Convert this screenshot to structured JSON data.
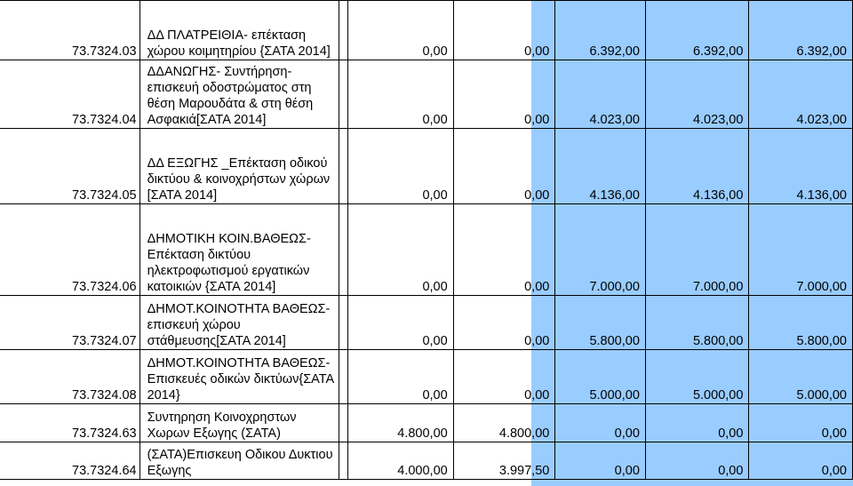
{
  "rows": [
    {
      "code": "73.7324.03",
      "desc": "ΔΔ ΠΛΑΤΡΕΙΘΙΑ- επέκταση χώρου κοιμητηρίου {ΣΑΤΑ 2014]",
      "v1": "0,00",
      "v2": "0,00",
      "v3": "6.392,00",
      "v4": "6.392,00",
      "v5": "6.392,00"
    },
    {
      "code": "73.7324.04",
      "desc": "ΔΔΑΝΩΓΗΣ- Συντήρηση-επισκευή οδοστρώματος στη θέση Μαρουδάτα & στη θέση Ασφακιά[ΣΑΤΑ 2014]",
      "v1": "0,00",
      "v2": "0,00",
      "v3": "4.023,00",
      "v4": "4.023,00",
      "v5": "4.023,00"
    },
    {
      "code": "73.7324.05",
      "desc": "ΔΔ ΕΞΩΓΗΣ _Επέκταση οδικού δικτύου & κοινοχρήστων χώρων [ΣΑΤΑ 2014]",
      "v1": "0,00",
      "v2": "0,00",
      "v3": "4.136,00",
      "v4": "4.136,00",
      "v5": "4.136,00"
    },
    {
      "code": "73.7324.06",
      "desc": "ΔΗΜΟΤΙΚΗ ΚΟΙΝ.ΒΑΘΕΩΣ-Επέκταση δικτύου ηλεκτροφωτισμού εργατικών κατοικιών {ΣΑΤΑ 2014]",
      "v1": "0,00",
      "v2": "0,00",
      "v3": "7.000,00",
      "v4": "7.000,00",
      "v5": "7.000,00"
    },
    {
      "code": "73.7324.07",
      "desc": "ΔΗΜΟΤ.ΚΟΙΝΟΤΗΤΑ ΒΑΘΕΩΣ- επισκευή χώρου στάθμευσης[ΣΑΤΑ 2014]",
      "v1": "0,00",
      "v2": "0,00",
      "v3": "5.800,00",
      "v4": "5.800,00",
      "v5": "5.800,00"
    },
    {
      "code": "73.7324.08",
      "desc": "ΔΗΜΟΤ.ΚΟΙΝΟΤΗΤΑ ΒΑΘΕΩΣ- Επισκευές οδικών δικτύων{ΣΑΤΑ 2014}",
      "v1": "0,00",
      "v2": "0,00",
      "v3": "5.000,00",
      "v4": "5.000,00",
      "v5": "5.000,00"
    },
    {
      "code": "73.7324.63",
      "desc": "Συντηρηση Κοινοχρηστων Χωρων Εξωγης (ΣΑΤΑ)",
      "v1": "4.800,00",
      "v2": "4.800,00",
      "v3": "0,00",
      "v4": "0,00",
      "v5": "0,00"
    },
    {
      "code": "73.7324.64",
      "desc": "(ΣΑΤΑ)Επισκευη Οδικου Δυκτιου Εξωγης",
      "v1": "4.000,00",
      "v2": "3.997,50",
      "v3": "0,00",
      "v4": "0,00",
      "v5": "0,00"
    }
  ],
  "colors": {
    "highlight": "#99ccff",
    "grid": "#000000"
  }
}
